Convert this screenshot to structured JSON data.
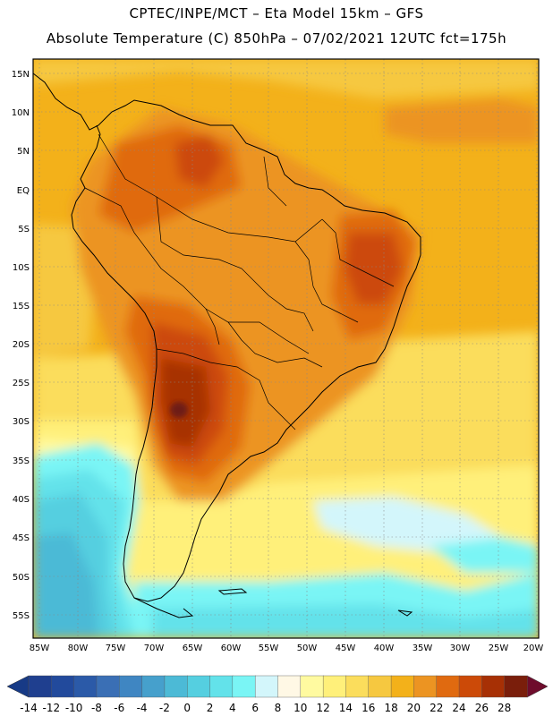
{
  "title_line1": "CPTEC/INPE/MCT –  Eta Model 15km – GFS",
  "title_line2": "Absolute Temperature (C) 850hPa – 07/02/2021 12UTC fct=175h",
  "lat_labels": [
    "15N",
    "10N",
    "5N",
    "EQ",
    "5S",
    "10S",
    "15S",
    "20S",
    "25S",
    "30S",
    "35S",
    "40S",
    "45S",
    "50S",
    "55S"
  ],
  "lon_labels": [
    "85W",
    "80W",
    "75W",
    "70W",
    "65W",
    "60W",
    "55W",
    "50W",
    "45W",
    "40W",
    "35W",
    "30W",
    "25W",
    "20W"
  ],
  "colorbar": {
    "labels": [
      "-14",
      "-12",
      "-10",
      "-8",
      "-6",
      "-4",
      "-2",
      "0",
      "2",
      "4",
      "6",
      "8",
      "10",
      "12",
      "14",
      "16",
      "18",
      "20",
      "22",
      "24",
      "26",
      "28"
    ],
    "colors": [
      "#1f3f8f",
      "#224a9c",
      "#2b5aa8",
      "#3a6fb5",
      "#3f86c2",
      "#46a0cc",
      "#4cbad6",
      "#55cfe0",
      "#63e2ea",
      "#7af5f5",
      "#d3f6fb",
      "#fff8e5",
      "#fffaa0",
      "#fff07a",
      "#fbdd5c",
      "#f6c840",
      "#f3b11a",
      "#ec9422",
      "#e06a10",
      "#cc4a08",
      "#a73005",
      "#7a1e0b"
    ],
    "low_color": "#173a86",
    "high_color": "#6e0c2c"
  }
}
